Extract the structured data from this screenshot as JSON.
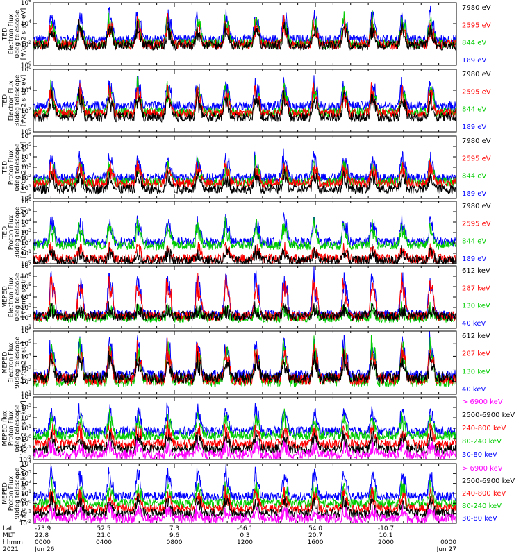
{
  "chart_data": [
    {
      "type": "line",
      "instrument": "TED",
      "ylabel": [
        "TED",
        "Electron Flux",
        "0deg telescope",
        "[#/cm2-s-str-eV]"
      ],
      "ylim": [
        1,
        1000000
      ],
      "log_y": true,
      "yticks": [
        1,
        100,
        10000,
        1000000
      ],
      "series": [
        {
          "name": "7980 eV",
          "color": "#000000",
          "baseline": 80,
          "peak": 8000
        },
        {
          "name": "2595 eV",
          "color": "#ff0000",
          "baseline": 100,
          "peak": 20000
        },
        {
          "name": "844 eV",
          "color": "#00cc00",
          "baseline": 120,
          "peak": 60000
        },
        {
          "name": "189 eV",
          "color": "#0000ff",
          "baseline": 300,
          "peak": 200000
        }
      ]
    },
    {
      "type": "line",
      "instrument": "TED",
      "ylabel": [
        "TED",
        "Electron Flux",
        "30deg telescope",
        "[#/cm2-s-str-eV]"
      ],
      "ylim": [
        1,
        1000000
      ],
      "log_y": true,
      "yticks": [
        1,
        100,
        10000,
        1000000
      ],
      "series": [
        {
          "name": "7980 eV",
          "color": "#000000",
          "baseline": 25,
          "peak": 5000
        },
        {
          "name": "2595 eV",
          "color": "#ff0000",
          "baseline": 60,
          "peak": 20000
        },
        {
          "name": "844 eV",
          "color": "#00cc00",
          "baseline": 80,
          "peak": 50000
        },
        {
          "name": "189 eV",
          "color": "#0000ff",
          "baseline": 300,
          "peak": 100000
        }
      ]
    },
    {
      "type": "line",
      "instrument": "TED",
      "ylabel": [
        "TED",
        "Proton Flux",
        "0deg telescope",
        "[#/cm2-s-str-eV]"
      ],
      "ylim": [
        1,
        1000000
      ],
      "log_y": true,
      "yticks": [
        1,
        10,
        100,
        1000,
        10000,
        100000,
        1000000
      ],
      "series": [
        {
          "name": "7980 eV",
          "color": "#000000",
          "baseline": 8,
          "peak": 300
        },
        {
          "name": "2595 eV",
          "color": "#ff0000",
          "baseline": 30,
          "peak": 2000
        },
        {
          "name": "844 eV",
          "color": "#00cc00",
          "baseline": 40,
          "peak": 3000
        },
        {
          "name": "189 eV",
          "color": "#0000ff",
          "baseline": 100,
          "peak": 20000
        }
      ]
    },
    {
      "type": "line",
      "instrument": "TED",
      "ylabel": [
        "TED",
        "Proton Flux",
        "30deg telescope",
        "[#/cm2-s-str-eV]"
      ],
      "ylim": [
        1,
        1000000
      ],
      "log_y": true,
      "yticks": [
        1,
        10,
        100,
        1000,
        10000,
        100000,
        1000000
      ],
      "series": [
        {
          "name": "7980 eV",
          "color": "#000000",
          "baseline": 2,
          "peak": 20
        },
        {
          "name": "2595 eV",
          "color": "#ff0000",
          "baseline": 3,
          "peak": 50
        },
        {
          "name": "844 eV",
          "color": "#00cc00",
          "baseline": 60,
          "peak": 10000
        },
        {
          "name": "189 eV",
          "color": "#0000ff",
          "baseline": 120,
          "peak": 30000
        }
      ]
    },
    {
      "type": "line",
      "instrument": "MEPED",
      "ylabel": [
        "MEPED",
        "Electron Flux",
        "0deg telescope",
        "[#/cm2-s-str]"
      ],
      "ylim": [
        10,
        10000000
      ],
      "log_y": true,
      "yticks": [
        10,
        100,
        1000,
        10000,
        100000,
        1000000,
        10000000
      ],
      "series": [
        {
          "name": "612 keV",
          "color": "#000000",
          "baseline": 150,
          "peak": 1000
        },
        {
          "name": "287 keV",
          "color": "#ff0000",
          "baseline": 150,
          "peak": 1500000
        },
        {
          "name": "130 keV",
          "color": "#00cc00",
          "baseline": 100,
          "peak": 1000
        },
        {
          "name": "40 keV",
          "color": "#0000ff",
          "baseline": 200,
          "peak": 3000000
        }
      ]
    },
    {
      "type": "line",
      "instrument": "MEPED",
      "ylabel": [
        "MEPED",
        "Electron Flux",
        "90deg telescope",
        "[#/cm2-s-str]"
      ],
      "ylim": [
        10,
        1000000
      ],
      "log_y": true,
      "yticks": [
        10,
        100,
        1000,
        10000,
        100000,
        1000000
      ],
      "series": [
        {
          "name": "612 keV",
          "color": "#000000",
          "baseline": 200,
          "peak": 10000
        },
        {
          "name": "287 keV",
          "color": "#ff0000",
          "baseline": 150,
          "peak": 100000
        },
        {
          "name": "130 keV",
          "color": "#00cc00",
          "baseline": 110,
          "peak": 200000
        },
        {
          "name": "40 keV",
          "color": "#0000ff",
          "baseline": 300,
          "peak": 400000
        }
      ]
    },
    {
      "type": "line",
      "instrument": "MEPED",
      "ylabel": [
        "MEPED flux",
        "Proton Flux",
        "0deg telescope",
        "[#/cm2-s-str-keV]"
      ],
      "ylim": [
        0.01,
        10000
      ],
      "log_y": true,
      "yticks": [
        0.01,
        0.1,
        1,
        10,
        100,
        1000,
        10000
      ],
      "series": [
        {
          "name": "> 6900 keV",
          "color": "#ff00ff",
          "baseline": 0.03,
          "peak": 0.3
        },
        {
          "name": "2500-6900 keV",
          "color": "#000000",
          "baseline": 0.1,
          "peak": 3
        },
        {
          "name": "240-800 keV",
          "color": "#ff0000",
          "baseline": 0.3,
          "peak": 20
        },
        {
          "name": "80-240 keV",
          "color": "#00cc00",
          "baseline": 2,
          "peak": 200
        },
        {
          "name": "30-80 keV",
          "color": "#0000ff",
          "baseline": 5,
          "peak": 1000
        }
      ]
    },
    {
      "type": "line",
      "instrument": "MEPED",
      "ylabel": [
        "MEPED",
        "Proton Flux",
        "90deg telescope",
        "[#/cm2-s-str-keV]"
      ],
      "ylim": [
        0.01,
        10000
      ],
      "log_y": true,
      "yticks": [
        0.01,
        0.1,
        1,
        10,
        100,
        1000,
        10000
      ],
      "series": [
        {
          "name": "> 6900 keV",
          "color": "#ff00ff",
          "baseline": 0.03,
          "peak": 0.3
        },
        {
          "name": "2500-6900 keV",
          "color": "#000000",
          "baseline": 0.1,
          "peak": 3
        },
        {
          "name": "240-800 keV",
          "color": "#ff0000",
          "baseline": 0.3,
          "peak": 20
        },
        {
          "name": "80-240 keV",
          "color": "#00cc00",
          "baseline": 1,
          "peak": 100
        },
        {
          "name": "30-80 keV",
          "color": "#0000ff",
          "baseline": 5,
          "peak": 3000
        }
      ]
    }
  ],
  "xaxis": {
    "row_labels": [
      "Lat",
      "MLT",
      "hhmm",
      "2021"
    ],
    "ticks": [
      {
        "lat": "-73.9",
        "mlt": "22.8",
        "hhmm": "0000",
        "date": "Jun 26"
      },
      {
        "lat": "52.5",
        "mlt": "21.0",
        "hhmm": "0400",
        "date": ""
      },
      {
        "lat": "7.3",
        "mlt": "9.6",
        "hhmm": "0800",
        "date": ""
      },
      {
        "lat": "-66.1",
        "mlt": "0.3",
        "hhmm": "1200",
        "date": ""
      },
      {
        "lat": "54.0",
        "mlt": "20.7",
        "hhmm": "1600",
        "date": ""
      },
      {
        "lat": "-10.7",
        "mlt": "10.1",
        "hhmm": "2000",
        "date": ""
      },
      {
        "lat": "",
        "mlt": "",
        "hhmm": "0000",
        "date": "Jun 27"
      }
    ]
  },
  "orbit_peak_times_hours": [
    1.0,
    2.6,
    4.3,
    5.9,
    7.6,
    9.3,
    10.9,
    12.6,
    14.2,
    15.9,
    17.6,
    19.2,
    20.9,
    22.5
  ]
}
